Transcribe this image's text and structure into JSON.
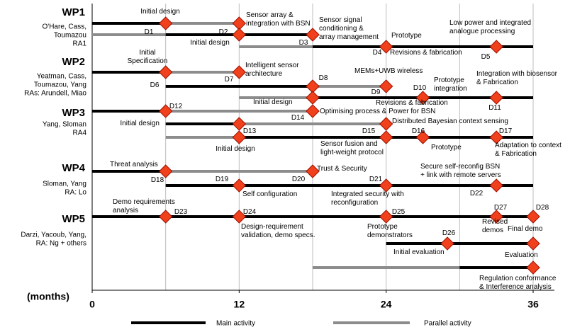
{
  "axis": {
    "label": "(months)",
    "range": [
      0,
      36
    ],
    "ticks": [
      0,
      12,
      24,
      36
    ],
    "grid": [
      6,
      12,
      18,
      24,
      30,
      36
    ]
  },
  "legend": [
    {
      "kind": "main",
      "label": "Main activity",
      "color": "#000000"
    },
    {
      "kind": "parallel",
      "label": "Parallel activity",
      "color": "#8c8c8c"
    }
  ],
  "packages": [
    {
      "title": "WP1",
      "people": [
        "O'Hare, Cass,",
        "Toumazou",
        "RA1"
      ],
      "rows": [
        {
          "segments": [
            {
              "from": 0,
              "to": 6,
              "kind": "main"
            },
            {
              "from": 6,
              "to": 12,
              "kind": "parallel"
            }
          ],
          "milestones": [
            6,
            12
          ]
        },
        {
          "segments": [
            {
              "from": 0,
              "to": 6,
              "kind": "parallel"
            },
            {
              "from": 6,
              "to": 18,
              "kind": "main"
            }
          ],
          "milestones": [
            12,
            18
          ]
        },
        {
          "segments": [
            {
              "from": 12,
              "to": 18,
              "kind": "parallel"
            },
            {
              "from": 18,
              "to": 36,
              "kind": "main"
            }
          ],
          "milestones": [
            24,
            33
          ]
        }
      ],
      "notes": [
        [
          "Initial design"
        ],
        [
          "Sensor array &",
          "integration with BSN"
        ],
        [
          "D1"
        ],
        [
          "D2"
        ],
        [
          "Sensor signal",
          "conditioning &",
          "array management"
        ],
        [
          "Initial design"
        ],
        [
          "D3"
        ],
        [
          "Prototype"
        ],
        [
          "D4"
        ],
        [
          "Revisions & fabrication"
        ],
        [
          "Low power and integrated",
          "analogue processing"
        ],
        [
          "D5"
        ]
      ]
    },
    {
      "title": "WP2",
      "people": [
        "Yeatman, Cass,",
        "Toumazou, Yang",
        "RAs: Arundell, Miao"
      ],
      "rows": [
        {
          "segments": [
            {
              "from": 0,
              "to": 6,
              "kind": "main"
            },
            {
              "from": 6,
              "to": 12,
              "kind": "parallel"
            }
          ],
          "milestones": [
            6,
            12
          ]
        },
        {
          "segments": [
            {
              "from": 6,
              "to": 18,
              "kind": "main"
            },
            {
              "from": 18,
              "to": 24,
              "kind": "parallel"
            }
          ],
          "milestones": [
            18,
            24
          ]
        },
        {
          "segments": [
            {
              "from": 12,
              "to": 18,
              "kind": "parallel"
            },
            {
              "from": 18,
              "to": 36,
              "kind": "main"
            }
          ],
          "milestones": [
            18,
            27,
            33
          ]
        }
      ],
      "notes": [
        [
          "Initial",
          "Specification"
        ],
        [
          "Intelligent sensor",
          "architecture"
        ],
        [
          "D6"
        ],
        [
          "D7"
        ],
        [
          "D8"
        ],
        [
          "MEMs+UWB wireless"
        ],
        [
          "D9"
        ],
        [
          "D10"
        ],
        [
          "Prototype",
          "integration"
        ],
        [
          "Integration with biosensor",
          "& Fabrication"
        ],
        [
          "Initial design"
        ],
        [
          "Revisions & fabrication"
        ],
        [
          "D11"
        ]
      ]
    },
    {
      "title": "WP3",
      "people": [
        "Yang, Sloman",
        "RA4"
      ],
      "rows": [
        {
          "segments": [
            {
              "from": 0,
              "to": 6,
              "kind": "main"
            },
            {
              "from": 6,
              "to": 18,
              "kind": "parallel"
            }
          ],
          "milestones": [
            6,
            18
          ]
        },
        {
          "segments": [
            {
              "from": 6,
              "to": 12,
              "kind": "main"
            },
            {
              "from": 12,
              "to": 24,
              "kind": "parallel"
            }
          ],
          "milestones": [
            12,
            24
          ]
        },
        {
          "segments": [
            {
              "from": 6,
              "to": 12,
              "kind": "parallel"
            },
            {
              "from": 12,
              "to": 36,
              "kind": "main"
            }
          ],
          "milestones": [
            12,
            24,
            27,
            33
          ]
        }
      ],
      "notes": [
        [
          "D12"
        ],
        [
          "Optimising process & Power for BSN"
        ],
        [
          "D14"
        ],
        [
          "Initial design"
        ],
        [
          "D13"
        ],
        [
          "Distributed Bayesian context sensing"
        ],
        [
          "Initial design"
        ],
        [
          "D15"
        ],
        [
          "Sensor fusion and",
          "light-weight protocol"
        ],
        [
          "D16"
        ],
        [
          "Prototype"
        ],
        [
          "D17"
        ],
        [
          "Adaptation to context",
          "& Fabrication"
        ]
      ]
    },
    {
      "title": "WP4",
      "people": [
        "Sloman, Yang",
        "RA: Lo"
      ],
      "rows": [
        {
          "segments": [
            {
              "from": 0,
              "to": 6,
              "kind": "main"
            },
            {
              "from": 6,
              "to": 18,
              "kind": "parallel"
            }
          ],
          "milestones": [
            6,
            18
          ]
        },
        {
          "segments": [
            {
              "from": 6,
              "to": 36,
              "kind": "main"
            }
          ],
          "milestones": [
            12,
            24,
            33
          ]
        }
      ],
      "notes": [
        [
          "Threat analysis"
        ],
        [
          "D18"
        ],
        [
          "Trust & Security"
        ],
        [
          "D20"
        ],
        [
          "D19"
        ],
        [
          "Self configuration"
        ],
        [
          "D21"
        ],
        [
          "Integrated security with",
          "reconfiguration"
        ],
        [
          "Secure self-reconfig BSN",
          "+ link with remote servers"
        ],
        [
          "D22"
        ]
      ]
    },
    {
      "title": "WP5",
      "people": [
        "Darzi, Yacoub, Yang,",
        "RA: Ng + others"
      ],
      "rows": [
        {
          "segments": [
            {
              "from": 0,
              "to": 36,
              "kind": "main"
            }
          ],
          "milestones": [
            6,
            12,
            24,
            33,
            36
          ]
        },
        {
          "segments": [
            {
              "from": 24,
              "to": 36,
              "kind": "main"
            }
          ],
          "milestones": [
            29,
            36
          ]
        },
        {
          "segments": [
            {
              "from": 18,
              "to": 30,
              "kind": "parallel"
            },
            {
              "from": 30,
              "to": 36,
              "kind": "main"
            }
          ],
          "milestones": [
            36
          ]
        }
      ],
      "notes": [
        [
          "Demo requirements",
          "analysis"
        ],
        [
          "D23"
        ],
        [
          "D24"
        ],
        [
          "Design-requirement",
          "validation,  demo specs."
        ],
        [
          "D25"
        ],
        [
          "Prototype",
          "demonstrators"
        ],
        [
          "D27"
        ],
        [
          "Revised",
          "demos"
        ],
        [
          "D28"
        ],
        [
          "Final demo"
        ],
        [
          "D26"
        ],
        [
          "Initial evaluation"
        ],
        [
          "Evaluation"
        ],
        [
          "Regulation conformance",
          "& Interference analysis"
        ]
      ]
    }
  ]
}
